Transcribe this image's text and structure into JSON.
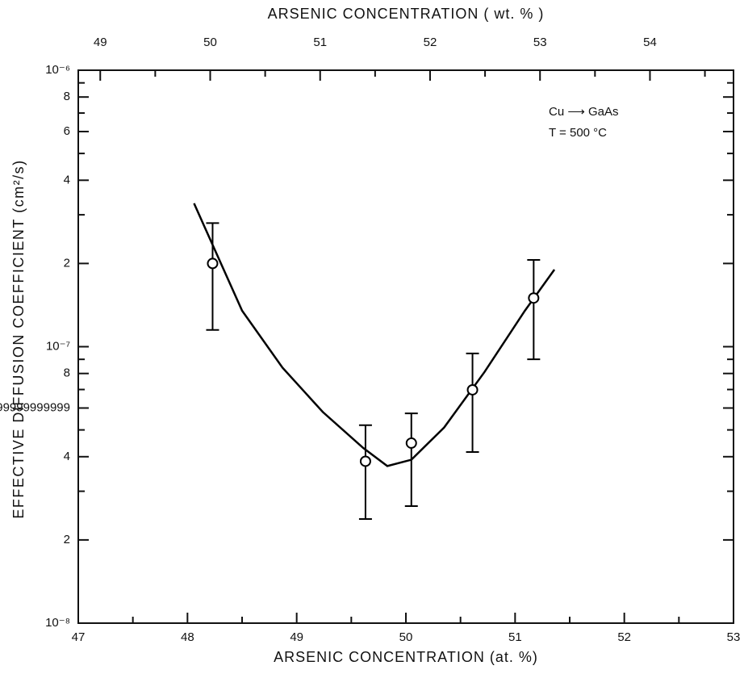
{
  "chart_data": {
    "type": "scatter",
    "title": null,
    "xlabel": "ARSENIC CONCENTRATION (at. %)",
    "x2label": "ARSENIC CONCENTRATION ( wt. % )",
    "ylabel": "EFFECTIVE  DIFFUSION  COEFFICIENT  (cm²/s)",
    "annotations": [
      "Cu ⟶ GaAs",
      "T = 500 °C"
    ],
    "log_y": true,
    "xlim": [
      47,
      53
    ],
    "xticks": [
      47,
      48,
      49,
      50,
      51,
      52,
      53
    ],
    "xminor_ticks": [
      47.5,
      48.5,
      49.5,
      50.5,
      51.5,
      52.5
    ],
    "x2lim": [
      48.8,
      54.76
    ],
    "x2ticks": [
      49,
      50,
      51,
      52,
      53,
      54
    ],
    "x2minor_ticks": [
      49.5,
      50.5,
      51.5,
      52.5,
      53.5,
      54.5
    ],
    "ylim": [
      1e-08,
      1e-06
    ],
    "yticks": [
      {
        "value": 1e-08,
        "label": "10⁻⁸"
      },
      2e-08,
      4e-08,
      6e-08,
      8e-08,
      {
        "value": 1e-07,
        "label": "10⁻⁷"
      },
      2e-07,
      4e-07,
      6e-07,
      8e-07,
      {
        "value": 1e-06,
        "label": "10⁻⁶"
      }
    ],
    "yticks_labels_override": null,
    "yminor_ticks": [
      3e-08,
      5e-08,
      7e-08,
      9e-08,
      3e-07,
      5e-07,
      7e-07,
      9e-07
    ],
    "series": [
      {
        "color": "#000000",
        "x": [
          48.23,
          49.63,
          50.05,
          50.61,
          51.17
        ],
        "values": [
          2e-07,
          3.85e-08,
          4.48e-08,
          6.98e-08,
          1.5e-07
        ],
        "y_upper": [
          2.8e-07,
          5.2e-08,
          5.74e-08,
          9.45e-08,
          2.06e-07
        ],
        "y_lower": [
          1.15e-07,
          2.38e-08,
          2.65e-08,
          4.16e-08,
          9e-08
        ]
      }
    ],
    "fit": {
      "color": "#000000",
      "x": [
        48.06,
        48.5,
        48.87,
        49.24,
        49.61,
        49.83,
        50.05,
        50.35,
        50.72,
        51.09,
        51.36
      ],
      "values": [
        3.3e-07,
        1.35e-07,
        8.4e-08,
        5.8e-08,
        4.3e-08,
        3.7e-08,
        3.9e-08,
        5.1e-08,
        8.1e-08,
        1.35e-07,
        1.9e-07
      ]
    }
  }
}
